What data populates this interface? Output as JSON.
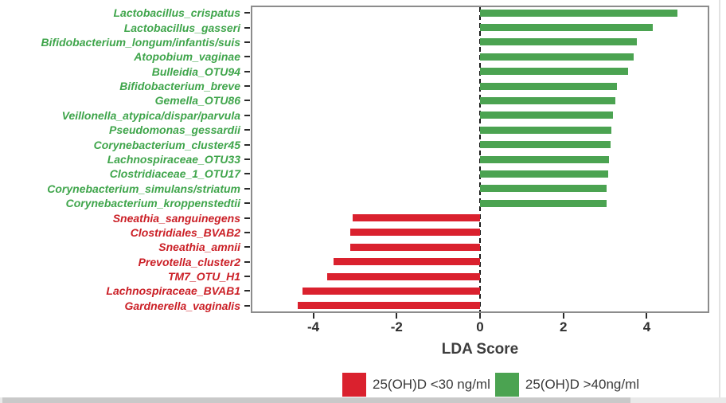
{
  "colors": {
    "low_bar": "#da212e",
    "low_text": "#cb2027",
    "high_bar": "#4ba351",
    "high_text": "#3fa54b",
    "frame": "#8c8c8c",
    "zero_line": "#191919"
  },
  "chart_data": {
    "type": "bar",
    "orientation": "horizontal",
    "xlabel": "LDA Score",
    "xlim": [
      -5.5,
      5.5
    ],
    "xticks": [
      -4,
      -2,
      0,
      2,
      4
    ],
    "grid": false,
    "zero_reference_line": 0,
    "legend_position": "bottom",
    "items": [
      {
        "label": "Lactobacillus_crispatus",
        "value": 4.7,
        "group": "high"
      },
      {
        "label": "Lactobacillus_gasseri",
        "value": 4.1,
        "group": "high"
      },
      {
        "label": "Bifidobacterium_longum/infantis/suis",
        "value": 3.72,
        "group": "high"
      },
      {
        "label": "Atopobium_vaginae",
        "value": 3.64,
        "group": "high"
      },
      {
        "label": "Bulleidia_OTU94",
        "value": 3.52,
        "group": "high"
      },
      {
        "label": "Bifidobacterium_breve",
        "value": 3.25,
        "group": "high"
      },
      {
        "label": "Gemella_OTU86",
        "value": 3.2,
        "group": "high"
      },
      {
        "label": "Veillonella_atypica/dispar/parvula",
        "value": 3.16,
        "group": "high"
      },
      {
        "label": "Pseudomonas_gessardii",
        "value": 3.12,
        "group": "high"
      },
      {
        "label": "Corynebacterium_cluster45",
        "value": 3.1,
        "group": "high"
      },
      {
        "label": "Lachnospiraceae_OTU33",
        "value": 3.06,
        "group": "high"
      },
      {
        "label": "Clostridiaceae_1_OTU17",
        "value": 3.04,
        "group": "high"
      },
      {
        "label": "Corynebacterium_simulans/striatum",
        "value": 3.0,
        "group": "high"
      },
      {
        "label": "Corynebacterium_kroppenstedtii",
        "value": 3.0,
        "group": "high"
      },
      {
        "label": "Sneathia_sanguinegens",
        "value": -3.1,
        "group": "low"
      },
      {
        "label": "Clostridiales_BVAB2",
        "value": -3.15,
        "group": "low"
      },
      {
        "label": "Sneathia_amnii",
        "value": -3.15,
        "group": "low"
      },
      {
        "label": "Prevotella_cluster2",
        "value": -3.55,
        "group": "low"
      },
      {
        "label": "TM7_OTU_H1",
        "value": -3.7,
        "group": "low"
      },
      {
        "label": "Lachnospiraceae_BVAB1",
        "value": -4.3,
        "group": "low"
      },
      {
        "label": "Gardnerella_vaginalis",
        "value": -4.42,
        "group": "low"
      }
    ]
  },
  "legend": {
    "items": [
      {
        "group": "low",
        "label": "25(OH)D <30 ng/ml"
      },
      {
        "group": "high",
        "label": "25(OH)D >40ng/ml"
      }
    ]
  }
}
